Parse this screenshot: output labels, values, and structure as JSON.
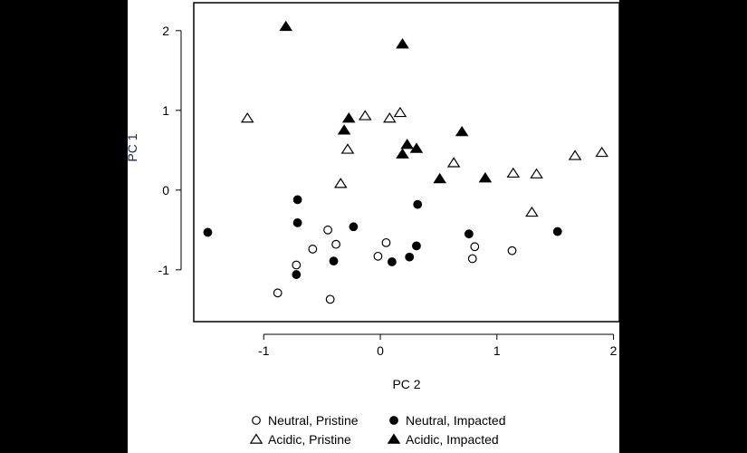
{
  "chart_data": {
    "type": "scatter",
    "title": "",
    "xlabel": "PC 2",
    "ylabel": "PC 1",
    "xlim": [
      -1.6,
      2.05
    ],
    "ylim": [
      -1.65,
      2.35
    ],
    "xticks": [
      -1,
      0,
      1,
      2
    ],
    "yticks": [
      -1,
      0,
      1,
      2
    ],
    "xtick_labels": [
      "-1",
      "0",
      "1",
      "2"
    ],
    "ytick_labels": [
      "-1",
      "0",
      "1",
      "2"
    ],
    "grid": false,
    "legend_position": "bottom",
    "series": [
      {
        "name": "Neutral, Pristine",
        "marker": "circle-open",
        "color": "#000000",
        "points": [
          {
            "x": -0.45,
            "y": -0.5
          },
          {
            "x": -0.58,
            "y": -0.74
          },
          {
            "x": -0.38,
            "y": -0.68
          },
          {
            "x": -0.72,
            "y": -0.94
          },
          {
            "x": -0.88,
            "y": -1.29
          },
          {
            "x": -0.43,
            "y": -1.37
          },
          {
            "x": -0.02,
            "y": -0.83
          },
          {
            "x": 0.05,
            "y": -0.66
          },
          {
            "x": 0.81,
            "y": -0.71
          },
          {
            "x": 0.79,
            "y": -0.86
          },
          {
            "x": 1.13,
            "y": -0.76
          }
        ]
      },
      {
        "name": "Neutral, Impacted",
        "marker": "circle-filled",
        "color": "#000000",
        "points": [
          {
            "x": -1.48,
            "y": -0.53
          },
          {
            "x": -0.71,
            "y": -0.12
          },
          {
            "x": -0.71,
            "y": -0.41
          },
          {
            "x": -0.23,
            "y": -0.46
          },
          {
            "x": -0.4,
            "y": -0.89
          },
          {
            "x": -0.72,
            "y": -1.06
          },
          {
            "x": 0.32,
            "y": -0.18
          },
          {
            "x": 0.31,
            "y": -0.7
          },
          {
            "x": 0.1,
            "y": -0.9
          },
          {
            "x": 0.25,
            "y": -0.84
          },
          {
            "x": 0.76,
            "y": -0.55
          },
          {
            "x": 1.52,
            "y": -0.52
          }
        ]
      },
      {
        "name": "Acidic, Pristine",
        "marker": "triangle-open",
        "color": "#000000",
        "points": [
          {
            "x": -1.14,
            "y": 0.9
          },
          {
            "x": -0.28,
            "y": 0.51
          },
          {
            "x": -0.34,
            "y": 0.08
          },
          {
            "x": -0.13,
            "y": 0.93
          },
          {
            "x": 0.08,
            "y": 0.9
          },
          {
            "x": 0.17,
            "y": 0.97
          },
          {
            "x": 0.63,
            "y": 0.34
          },
          {
            "x": 1.14,
            "y": 0.21
          },
          {
            "x": 1.34,
            "y": 0.2
          },
          {
            "x": 1.3,
            "y": -0.28
          },
          {
            "x": 1.67,
            "y": 0.43
          },
          {
            "x": 1.9,
            "y": 0.47
          }
        ]
      },
      {
        "name": "Acidic, Impacted",
        "marker": "triangle-filled",
        "color": "#000000",
        "points": [
          {
            "x": -0.81,
            "y": 2.05
          },
          {
            "x": 0.19,
            "y": 1.83
          },
          {
            "x": -0.27,
            "y": 0.9
          },
          {
            "x": -0.31,
            "y": 0.75
          },
          {
            "x": 0.23,
            "y": 0.57
          },
          {
            "x": 0.19,
            "y": 0.45
          },
          {
            "x": 0.31,
            "y": 0.52
          },
          {
            "x": 0.7,
            "y": 0.73
          },
          {
            "x": 0.51,
            "y": 0.14
          },
          {
            "x": 0.9,
            "y": 0.15
          }
        ]
      }
    ]
  }
}
